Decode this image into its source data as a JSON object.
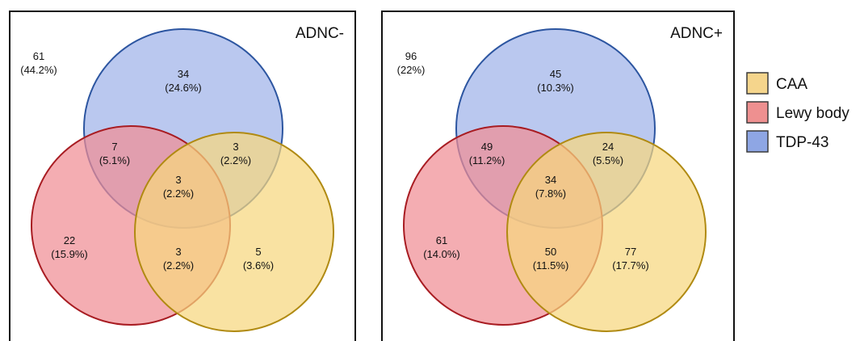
{
  "legend": [
    {
      "label": "CAA",
      "fill": "#f5d58c",
      "stroke": "#3a3a3a"
    },
    {
      "label": "Lewy body",
      "fill": "#ee9090",
      "stroke": "#3a3a3a"
    },
    {
      "label": "TDP-43",
      "fill": "#8ea6e4",
      "stroke": "#3a3a3a"
    }
  ],
  "colors": {
    "tdp43_fill": "#9fb3e9",
    "tdp43_stroke": "#2c55a0",
    "lewy_fill": "#f08d94",
    "lewy_stroke": "#a81c22",
    "caa_fill": "#f6d77e",
    "caa_stroke": "#b08a12"
  },
  "panels": [
    {
      "title": "ADNC-",
      "regions": {
        "none": {
          "count": "61",
          "pct": "(44.2%)"
        },
        "tdp_only": {
          "count": "34",
          "pct": "(24.6%)"
        },
        "lewy_tdp": {
          "count": "7",
          "pct": "(5.1%)"
        },
        "tdp_caa": {
          "count": "3",
          "pct": "(2.2%)"
        },
        "all_three": {
          "count": "3",
          "pct": "(2.2%)"
        },
        "lewy_only": {
          "count": "22",
          "pct": "(15.9%)"
        },
        "lewy_caa": {
          "count": "3",
          "pct": "(2.2%)"
        },
        "caa_only": {
          "count": "5",
          "pct": "(3.6%)"
        }
      }
    },
    {
      "title": "ADNC+",
      "regions": {
        "none": {
          "count": "96",
          "pct": "(22%)"
        },
        "tdp_only": {
          "count": "45",
          "pct": "(10.3%)"
        },
        "lewy_tdp": {
          "count": "49",
          "pct": "(11.2%)"
        },
        "tdp_caa": {
          "count": "24",
          "pct": "(5.5%)"
        },
        "all_three": {
          "count": "34",
          "pct": "(7.8%)"
        },
        "lewy_only": {
          "count": "61",
          "pct": "(14.0%)"
        },
        "lewy_caa": {
          "count": "50",
          "pct": "(11.5%)"
        },
        "caa_only": {
          "count": "77",
          "pct": "(17.7%)"
        }
      }
    }
  ]
}
